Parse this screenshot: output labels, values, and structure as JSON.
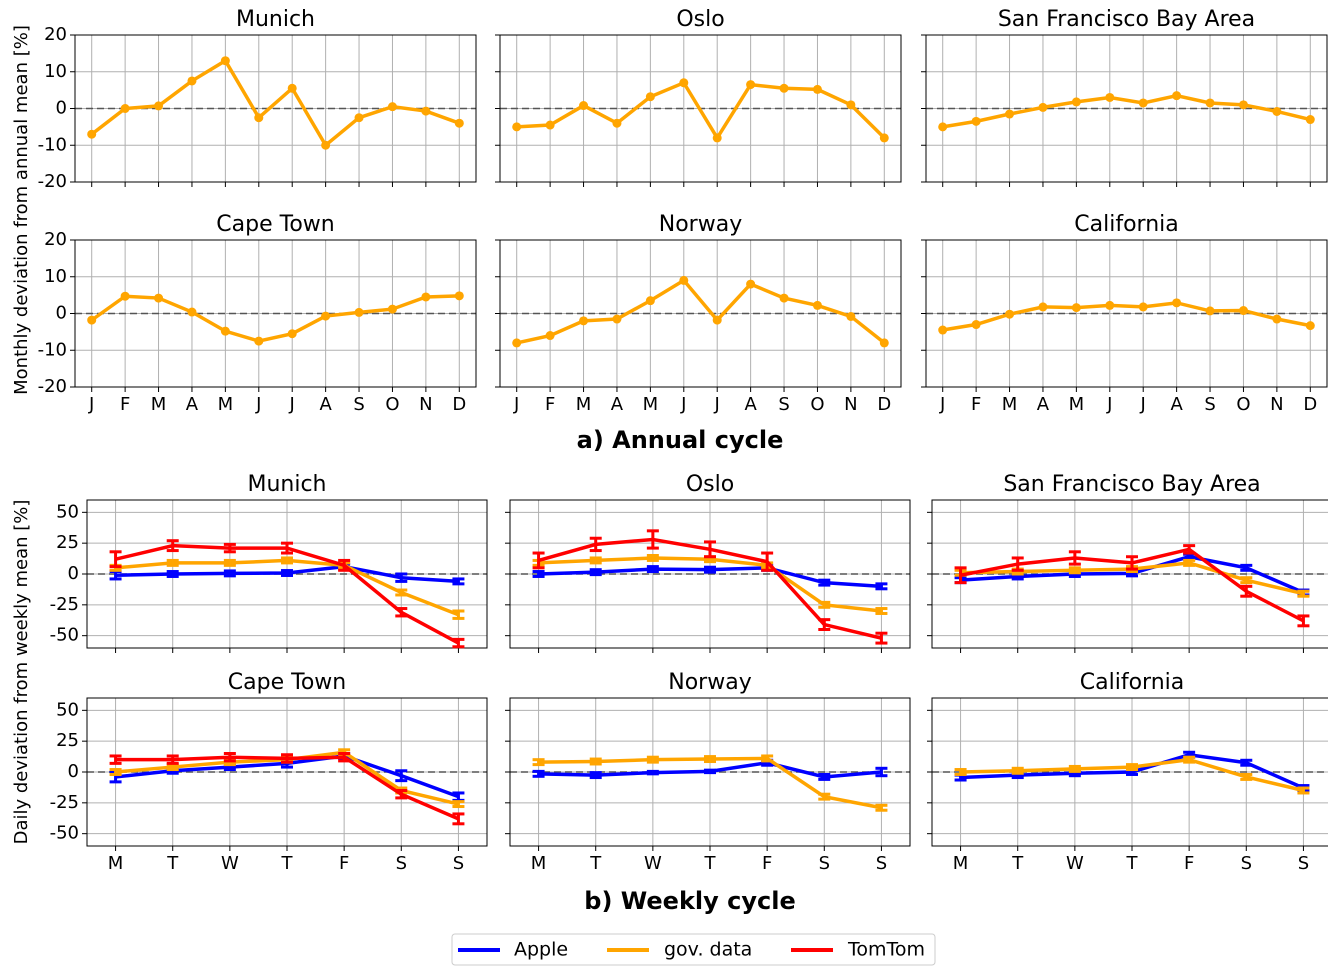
{
  "sections": [
    {
      "title": "a) Annual cycle",
      "ylabel": "Monthly deviation from annual mean [%]"
    },
    {
      "title": "b) Weekly cycle",
      "ylabel": "Daily deviation from weekly mean [%]"
    }
  ],
  "chart_data": [
    {
      "type": "line",
      "title": "Munich",
      "categories": [
        null,
        null,
        null,
        null,
        null,
        null,
        null,
        null,
        null,
        null,
        null,
        null
      ],
      "values": [
        -7,
        0,
        0.7,
        7.5,
        13,
        -2.5,
        5.5,
        -10,
        -2.5,
        0.5,
        -0.7,
        -4
      ],
      "color": "#ffa500",
      "ylim": [
        -20,
        20
      ],
      "yticks": [
        -20,
        -10,
        0,
        10,
        20
      ],
      "ytick_labels": true,
      "grid": true,
      "zero_line": true
    },
    {
      "type": "line",
      "title": "Oslo",
      "categories": [
        null,
        null,
        null,
        null,
        null,
        null,
        null,
        null,
        null,
        null,
        null,
        null
      ],
      "values": [
        -5,
        -4.5,
        0.8,
        -4,
        3.2,
        7,
        -8,
        6.5,
        5.5,
        5.2,
        1,
        -8
      ],
      "color": "#ffa500",
      "ylim": [
        -20,
        20
      ],
      "yticks": [
        -20,
        -10,
        0,
        10,
        20
      ],
      "ytick_labels": false,
      "grid": true,
      "zero_line": true
    },
    {
      "type": "line",
      "title": "San Francisco Bay Area",
      "categories": [
        null,
        null,
        null,
        null,
        null,
        null,
        null,
        null,
        null,
        null,
        null,
        null
      ],
      "values": [
        -5,
        -3.5,
        -1.5,
        0.3,
        1.8,
        3,
        1.5,
        3.5,
        1.5,
        1,
        -0.8,
        -3
      ],
      "color": "#ffa500",
      "ylim": [
        -20,
        20
      ],
      "yticks": [
        -20,
        -10,
        0,
        10,
        20
      ],
      "ytick_labels": false,
      "grid": true,
      "zero_line": true
    },
    {
      "type": "line",
      "title": "Cape Town",
      "categories": [
        "J",
        "F",
        "M",
        "A",
        "M",
        "J",
        "J",
        "A",
        "S",
        "O",
        "N",
        "D"
      ],
      "values": [
        -1.8,
        4.7,
        4.2,
        0.4,
        -4.8,
        -7.5,
        -5.5,
        -0.7,
        0.3,
        1.2,
        4.5,
        4.8
      ],
      "color": "#ffa500",
      "ylim": [
        -20,
        20
      ],
      "yticks": [
        -20,
        -10,
        0,
        10,
        20
      ],
      "ytick_labels": true,
      "grid": true,
      "zero_line": true
    },
    {
      "type": "line",
      "title": "Norway",
      "categories": [
        "J",
        "F",
        "M",
        "A",
        "M",
        "J",
        "J",
        "A",
        "S",
        "O",
        "N",
        "D"
      ],
      "values": [
        -8,
        -6,
        -2,
        -1.5,
        3.5,
        9,
        -1.8,
        8,
        4.2,
        2.2,
        -0.8,
        -8
      ],
      "color": "#ffa500",
      "ylim": [
        -20,
        20
      ],
      "yticks": [
        -20,
        -10,
        0,
        10,
        20
      ],
      "ytick_labels": false,
      "grid": true,
      "zero_line": true
    },
    {
      "type": "line",
      "title": "California",
      "categories": [
        "J",
        "F",
        "M",
        "A",
        "M",
        "J",
        "J",
        "A",
        "S",
        "O",
        "N",
        "D"
      ],
      "values": [
        -4.5,
        -3,
        -0.2,
        1.8,
        1.6,
        2.2,
        1.8,
        2.9,
        0.7,
        0.8,
        -1.5,
        -3.3
      ],
      "color": "#ffa500",
      "ylim": [
        -20,
        20
      ],
      "yticks": [
        -20,
        -10,
        0,
        10,
        20
      ],
      "ytick_labels": false,
      "grid": true,
      "zero_line": true
    },
    {
      "type": "errorline",
      "title": "Munich",
      "categories": [
        null,
        null,
        null,
        null,
        null,
        null,
        null
      ],
      "ylim": [
        -60,
        60
      ],
      "yticks": [
        -50,
        -25,
        0,
        25,
        50
      ],
      "ytick_labels": true,
      "grid": true,
      "zero_line": true,
      "series": [
        {
          "name": "Apple",
          "color": "#0000ff",
          "values": [
            -1,
            0,
            0.5,
            0.8,
            6,
            -3,
            -6
          ],
          "errors": [
            3,
            2,
            2,
            2,
            2,
            3,
            2
          ]
        },
        {
          "name": "gov. data",
          "color": "#ffa500",
          "values": [
            5,
            9,
            9,
            11,
            7,
            -15,
            -33
          ],
          "errors": [
            2,
            2,
            2,
            2,
            2,
            2,
            3
          ]
        },
        {
          "name": "TomTom",
          "color": "#ff0000",
          "values": [
            12,
            23,
            21,
            21,
            7,
            -31,
            -56
          ],
          "errors": [
            6,
            4,
            3,
            4,
            4,
            3,
            3
          ]
        }
      ]
    },
    {
      "type": "errorline",
      "title": "Oslo",
      "categories": [
        null,
        null,
        null,
        null,
        null,
        null,
        null
      ],
      "ylim": [
        -60,
        60
      ],
      "yticks": [
        -50,
        -25,
        0,
        25,
        50
      ],
      "ytick_labels": false,
      "grid": true,
      "zero_line": true,
      "series": [
        {
          "name": "Apple",
          "color": "#0000ff",
          "values": [
            0,
            1.5,
            4,
            3.5,
            5,
            -7,
            -10
          ],
          "errors": [
            2,
            2,
            2,
            2,
            2,
            2,
            2
          ]
        },
        {
          "name": "gov. data",
          "color": "#ffa500",
          "values": [
            9,
            11,
            13,
            12,
            7,
            -25,
            -30
          ],
          "errors": [
            2,
            2,
            2,
            2,
            2,
            2,
            2
          ]
        },
        {
          "name": "TomTom",
          "color": "#ff0000",
          "values": [
            11,
            24,
            28,
            20,
            10,
            -41,
            -52
          ],
          "errors": [
            6,
            5,
            7,
            6,
            7,
            4,
            4
          ]
        }
      ]
    },
    {
      "type": "errorline",
      "title": "San Francisco Bay Area",
      "categories": [
        null,
        null,
        null,
        null,
        null,
        null,
        null
      ],
      "ylim": [
        -60,
        60
      ],
      "yticks": [
        -50,
        -25,
        0,
        25,
        50
      ],
      "ytick_labels": false,
      "grid": true,
      "zero_line": true,
      "series": [
        {
          "name": "Apple",
          "color": "#0000ff",
          "values": [
            -5,
            -2,
            0,
            0.5,
            14,
            5,
            -15
          ],
          "errors": [
            2,
            2,
            2,
            2,
            2,
            2,
            2
          ]
        },
        {
          "name": "gov. data",
          "color": "#ffa500",
          "values": [
            1,
            2,
            3,
            4,
            9,
            -5,
            -16
          ],
          "errors": [
            2,
            2,
            2,
            2,
            2,
            2,
            2
          ]
        },
        {
          "name": "TomTom",
          "color": "#ff0000",
          "values": [
            -1,
            8,
            13,
            9,
            20,
            -14,
            -38
          ],
          "errors": [
            6,
            5,
            5,
            5,
            3,
            4,
            4
          ]
        }
      ]
    },
    {
      "type": "errorline",
      "title": "Cape Town",
      "categories": [
        "M",
        "T",
        "W",
        "T",
        "F",
        "S",
        "S"
      ],
      "ylim": [
        -60,
        60
      ],
      "yticks": [
        -50,
        -25,
        0,
        25,
        50
      ],
      "ytick_labels": true,
      "grid": true,
      "zero_line": true,
      "series": [
        {
          "name": "Apple",
          "color": "#0000ff",
          "values": [
            -4,
            1,
            4,
            7,
            13,
            -3,
            -20
          ],
          "errors": [
            4,
            2,
            2,
            3,
            2,
            4,
            3
          ]
        },
        {
          "name": "gov. data",
          "color": "#ffa500",
          "values": [
            0,
            4,
            8,
            10,
            16,
            -15,
            -26
          ],
          "errors": [
            2,
            2,
            2,
            2,
            2,
            2,
            2
          ]
        },
        {
          "name": "TomTom",
          "color": "#ff0000",
          "values": [
            10,
            10,
            12,
            11,
            12,
            -18,
            -38
          ],
          "errors": [
            3,
            3,
            3,
            3,
            3,
            3,
            4
          ]
        }
      ]
    },
    {
      "type": "errorline",
      "title": "Norway",
      "categories": [
        "M",
        "T",
        "W",
        "T",
        "F",
        "S",
        "S"
      ],
      "ylim": [
        -60,
        60
      ],
      "yticks": [
        -50,
        -25,
        0,
        25,
        50
      ],
      "ytick_labels": false,
      "grid": true,
      "zero_line": true,
      "series": [
        {
          "name": "Apple",
          "color": "#0000ff",
          "values": [
            -1.5,
            -2.5,
            -0.5,
            0.5,
            7.5,
            -4,
            0
          ],
          "errors": [
            2,
            2,
            1,
            1,
            2,
            2,
            3
          ]
        },
        {
          "name": "gov. data",
          "color": "#ffa500",
          "values": [
            8,
            8.5,
            10,
            10.5,
            11,
            -20,
            -29
          ],
          "errors": [
            2,
            2,
            2,
            2,
            2,
            2,
            2
          ]
        }
      ]
    },
    {
      "type": "errorline",
      "title": "California",
      "categories": [
        "M",
        "T",
        "W",
        "T",
        "F",
        "S",
        "S"
      ],
      "ylim": [
        -60,
        60
      ],
      "yticks": [
        -50,
        -25,
        0,
        25,
        50
      ],
      "ytick_labels": false,
      "grid": true,
      "zero_line": true,
      "series": [
        {
          "name": "Apple",
          "color": "#0000ff",
          "values": [
            -4.5,
            -2.5,
            -1,
            0,
            14,
            7.5,
            -13
          ],
          "errors": [
            2,
            2,
            2,
            2,
            2,
            2,
            2
          ]
        },
        {
          "name": "gov. data",
          "color": "#ffa500",
          "values": [
            0,
            1,
            2.5,
            4,
            10,
            -4,
            -15
          ],
          "errors": [
            2,
            2,
            2,
            2,
            2,
            2,
            2
          ]
        }
      ]
    }
  ]
}
